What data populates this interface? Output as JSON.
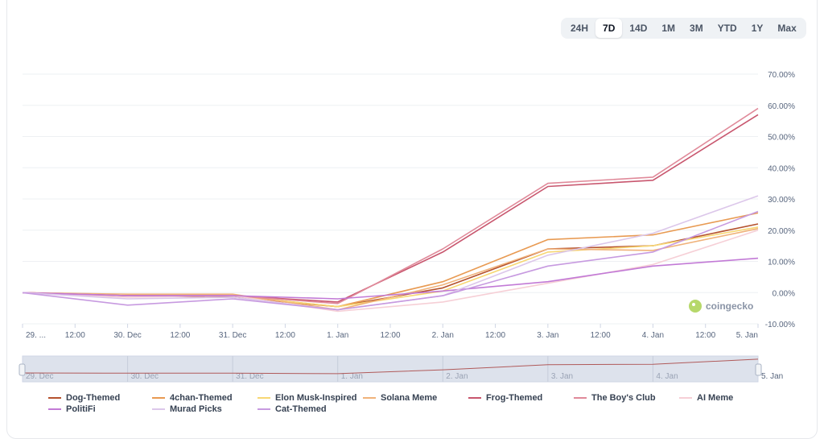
{
  "range_buttons": [
    "24H",
    "7D",
    "14D",
    "1M",
    "3M",
    "YTD",
    "1Y",
    "Max"
  ],
  "active_range": "7D",
  "watermark": "coingecko",
  "navigator": {
    "tick_labels": [
      "29. Dec",
      "30. Dec",
      "31. Dec",
      "1. Jan",
      "2. Jan",
      "3. Jan",
      "4. Jan",
      "5. Jan"
    ]
  },
  "chart_data": {
    "type": "line",
    "x_ticks": [
      "29. ...",
      "12:00",
      "30. Dec",
      "12:00",
      "31. Dec",
      "12:00",
      "1. Jan",
      "12:00",
      "2. Jan",
      "12:00",
      "3. Jan",
      "12:00",
      "4. Jan",
      "12:00",
      "5. Jan"
    ],
    "x": [
      0,
      0.5,
      1,
      1.5,
      2,
      2.5,
      3,
      3.5,
      4,
      4.5,
      5,
      5.5,
      6,
      6.5,
      7
    ],
    "y_ticks": [
      "70.00%",
      "60.00%",
      "50.00%",
      "40.00%",
      "30.00%",
      "20.00%",
      "10.00%",
      "0.00%",
      "-10.00%"
    ],
    "ylim": [
      -10,
      70
    ],
    "grid": true,
    "legend_position": "bottom",
    "series": [
      {
        "name": "Dog-Themed",
        "color": "#b5522e",
        "x": [
          0,
          1,
          2,
          3,
          4,
          5,
          6,
          7
        ],
        "values": [
          0,
          -1,
          -1.5,
          -4.5,
          1.5,
          14,
          15,
          22
        ]
      },
      {
        "name": "4chan-Themed",
        "color": "#e89a52",
        "x": [
          0,
          1,
          2,
          3,
          4,
          5,
          6,
          7
        ],
        "values": [
          0,
          -1,
          -1,
          -4.5,
          3.5,
          17,
          18.5,
          25.5
        ]
      },
      {
        "name": "Elon Musk-Inspired",
        "color": "#f7d774",
        "x": [
          0,
          1,
          2,
          3,
          4,
          5,
          6,
          7
        ],
        "values": [
          0,
          -1,
          -1,
          -4.5,
          0.5,
          13,
          15,
          21
        ]
      },
      {
        "name": "Solana Meme",
        "color": "#f0b27a",
        "x": [
          0,
          1,
          2,
          3,
          4,
          5,
          6,
          7
        ],
        "values": [
          0,
          -0.5,
          -0.5,
          -5.5,
          2.5,
          14,
          13.5,
          20.5
        ]
      },
      {
        "name": "Frog-Themed",
        "color": "#c8566e",
        "x": [
          0,
          1,
          2,
          3,
          4,
          5,
          6,
          7
        ],
        "values": [
          0,
          -1,
          -1,
          -3,
          13,
          34,
          36,
          57
        ]
      },
      {
        "name": "The Boy's Club",
        "color": "#e08a9a",
        "x": [
          0,
          1,
          2,
          3,
          4,
          5,
          6,
          7
        ],
        "values": [
          0,
          -1,
          -1,
          -3.5,
          14,
          35,
          37,
          59
        ]
      },
      {
        "name": "AI Meme",
        "color": "#f6cfd6",
        "x": [
          0,
          1,
          2,
          3,
          4,
          5,
          6,
          7
        ],
        "values": [
          0,
          -1.5,
          -1,
          -6,
          -3,
          3,
          9,
          20
        ]
      },
      {
        "name": "PolitiFi",
        "color": "#c27ad6",
        "x": [
          0,
          1,
          2,
          3,
          4,
          5,
          6,
          7
        ],
        "values": [
          0,
          -1,
          -1,
          -2,
          0.5,
          3.5,
          8.5,
          11
        ]
      },
      {
        "name": "Murad Picks",
        "color": "#dcc7ea",
        "x": [
          0,
          1,
          2,
          3,
          4,
          5,
          6,
          7
        ],
        "values": [
          0,
          -2,
          -1.5,
          -5.5,
          -1,
          12,
          19,
          31
        ]
      },
      {
        "name": "Cat-Themed",
        "color": "#c79ae0",
        "x": [
          0,
          1,
          2,
          3,
          4,
          5,
          6,
          7
        ],
        "values": [
          0,
          -4,
          -2,
          -5.5,
          -1,
          8.5,
          13,
          26
        ]
      }
    ]
  }
}
